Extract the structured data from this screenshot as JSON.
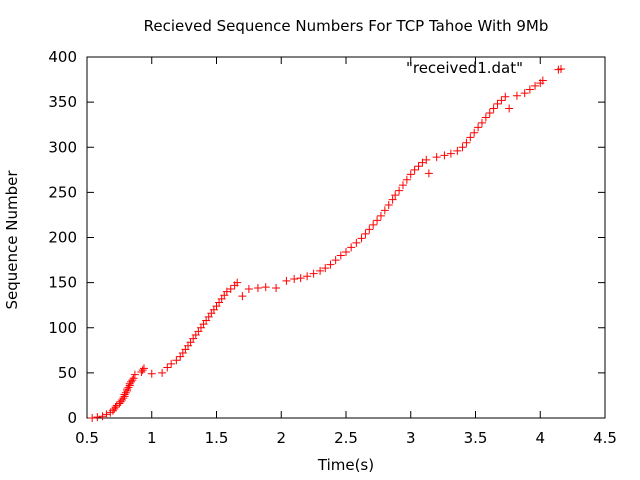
{
  "chart_data": {
    "type": "scatter",
    "title": "Recieved Sequence Numbers For TCP Tahoe With 9Mb",
    "xlabel": "Time(s)",
    "ylabel": "Sequence Number",
    "xlim": [
      0.5,
      4.5
    ],
    "ylim": [
      0,
      400
    ],
    "xticks": [
      0.5,
      1,
      1.5,
      2,
      2.5,
      3,
      3.5,
      4,
      4.5
    ],
    "xtick_labels": [
      "0.5",
      "1",
      "1.5",
      "2",
      "2.5",
      "3",
      "3.5",
      "4",
      "4.5"
    ],
    "yticks": [
      0,
      50,
      100,
      150,
      200,
      250,
      300,
      350,
      400
    ],
    "ytick_labels": [
      "0",
      "50",
      "100",
      "150",
      "200",
      "250",
      "300",
      "350",
      "400"
    ],
    "grid": false,
    "legend_position": "top-right",
    "marker": "+",
    "series": [
      {
        "name": "\"received1.dat\"",
        "color": "#ff0000",
        "points": [
          [
            0.54,
            0
          ],
          [
            0.58,
            1
          ],
          [
            0.62,
            2
          ],
          [
            0.65,
            4
          ],
          [
            0.68,
            6
          ],
          [
            0.7,
            8
          ],
          [
            0.71,
            10
          ],
          [
            0.72,
            12
          ],
          [
            0.73,
            14
          ],
          [
            0.75,
            16
          ],
          [
            0.76,
            18
          ],
          [
            0.77,
            20
          ],
          [
            0.78,
            22
          ],
          [
            0.79,
            24
          ],
          [
            0.79,
            26
          ],
          [
            0.8,
            28
          ],
          [
            0.81,
            30
          ],
          [
            0.81,
            32
          ],
          [
            0.82,
            34
          ],
          [
            0.83,
            36
          ],
          [
            0.83,
            38
          ],
          [
            0.84,
            40
          ],
          [
            0.85,
            42
          ],
          [
            0.86,
            44
          ],
          [
            0.87,
            48
          ],
          [
            0.92,
            51
          ],
          [
            0.93,
            53
          ],
          [
            0.94,
            55
          ],
          [
            1.0,
            49
          ],
          [
            1.08,
            50
          ],
          [
            1.12,
            56
          ],
          [
            1.15,
            60
          ],
          [
            1.19,
            64
          ],
          [
            1.22,
            68
          ],
          [
            1.24,
            72
          ],
          [
            1.26,
            76
          ],
          [
            1.28,
            80
          ],
          [
            1.3,
            84
          ],
          [
            1.32,
            88
          ],
          [
            1.34,
            92
          ],
          [
            1.36,
            96
          ],
          [
            1.38,
            100
          ],
          [
            1.4,
            104
          ],
          [
            1.42,
            108
          ],
          [
            1.44,
            112
          ],
          [
            1.46,
            116
          ],
          [
            1.48,
            120
          ],
          [
            1.5,
            124
          ],
          [
            1.52,
            128
          ],
          [
            1.54,
            132
          ],
          [
            1.56,
            136
          ],
          [
            1.58,
            140
          ],
          [
            1.61,
            143
          ],
          [
            1.64,
            147
          ],
          [
            1.66,
            150
          ],
          [
            1.7,
            135
          ],
          [
            1.75,
            143
          ],
          [
            1.82,
            144
          ],
          [
            1.88,
            145
          ],
          [
            1.96,
            144
          ],
          [
            2.04,
            152
          ],
          [
            2.1,
            154
          ],
          [
            2.15,
            155
          ],
          [
            2.2,
            157
          ],
          [
            2.25,
            160
          ],
          [
            2.3,
            163
          ],
          [
            2.34,
            166
          ],
          [
            2.38,
            170
          ],
          [
            2.42,
            175
          ],
          [
            2.46,
            180
          ],
          [
            2.5,
            184
          ],
          [
            2.54,
            189
          ],
          [
            2.58,
            194
          ],
          [
            2.62,
            199
          ],
          [
            2.65,
            204
          ],
          [
            2.68,
            209
          ],
          [
            2.71,
            214
          ],
          [
            2.74,
            219
          ],
          [
            2.77,
            224
          ],
          [
            2.8,
            230
          ],
          [
            2.83,
            236
          ],
          [
            2.86,
            242
          ],
          [
            2.88,
            247
          ],
          [
            2.91,
            252
          ],
          [
            2.94,
            258
          ],
          [
            2.97,
            264
          ],
          [
            3.0,
            270
          ],
          [
            3.03,
            275
          ],
          [
            3.06,
            279
          ],
          [
            3.09,
            283
          ],
          [
            3.12,
            286
          ],
          [
            3.14,
            271
          ],
          [
            3.2,
            289
          ],
          [
            3.26,
            291
          ],
          [
            3.31,
            293
          ],
          [
            3.36,
            296
          ],
          [
            3.4,
            300
          ],
          [
            3.43,
            305
          ],
          [
            3.46,
            311
          ],
          [
            3.49,
            316
          ],
          [
            3.52,
            322
          ],
          [
            3.55,
            327
          ],
          [
            3.58,
            333
          ],
          [
            3.61,
            338
          ],
          [
            3.64,
            343
          ],
          [
            3.67,
            348
          ],
          [
            3.7,
            352
          ],
          [
            3.73,
            356
          ],
          [
            3.76,
            343
          ],
          [
            3.82,
            357
          ],
          [
            3.88,
            360
          ],
          [
            3.92,
            364
          ],
          [
            3.96,
            368
          ],
          [
            4.0,
            371
          ],
          [
            4.02,
            374
          ],
          [
            4.14,
            386
          ]
        ]
      }
    ]
  }
}
